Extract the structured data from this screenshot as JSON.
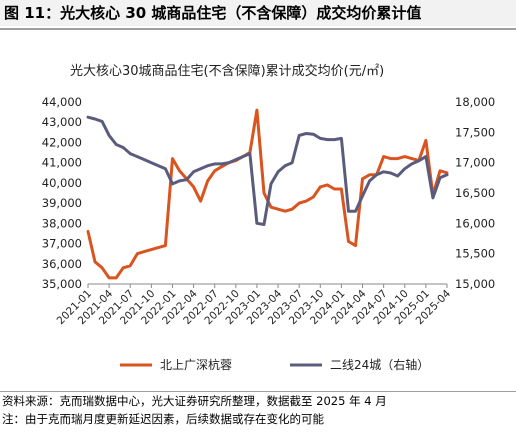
{
  "figure": {
    "label": "图 11：光大核心 30 城商品住宅（不含保障）成交均价累计值",
    "source_note": "资料来源：克而瑞数据中心，光大证券研究所整理，数据截至 2025 年 4 月",
    "footnote": "注：由于克而瑞月度更新延迟因素，后续数据或存在变化的可能"
  },
  "chart_data": {
    "type": "line",
    "title": "光大核心30城商品住宅(不含保障)累计成交均价(元/㎡)",
    "x": [
      "2021-01",
      "2021-02",
      "2021-03",
      "2021-04",
      "2021-05",
      "2021-06",
      "2021-07",
      "2021-08",
      "2021-09",
      "2021-10",
      "2021-11",
      "2021-12",
      "2022-01",
      "2022-02",
      "2022-03",
      "2022-04",
      "2022-05",
      "2022-06",
      "2022-07",
      "2022-08",
      "2022-09",
      "2022-10",
      "2022-11",
      "2022-12",
      "2023-01",
      "2023-02",
      "2023-03",
      "2023-04",
      "2023-05",
      "2023-06",
      "2023-07",
      "2023-08",
      "2023-09",
      "2023-10",
      "2023-11",
      "2023-12",
      "2024-01",
      "2024-02",
      "2024-03",
      "2024-04",
      "2024-05",
      "2024-06",
      "2024-07",
      "2024-08",
      "2024-09",
      "2024-10",
      "2024-11",
      "2024-12",
      "2025-01",
      "2025-02",
      "2025-03",
      "2025-04"
    ],
    "x_tick_labels": [
      "2021-01",
      "2021-04",
      "2021-07",
      "2021-10",
      "2022-01",
      "2022-04",
      "2022-07",
      "2022-10",
      "2023-01",
      "2023-04",
      "2023-07",
      "2023-10",
      "2024-01",
      "2024-04",
      "2024-07",
      "2024-10",
      "2025-01",
      "2025-04"
    ],
    "y_left": {
      "ticks": [
        "35,000",
        "36,000",
        "37,000",
        "38,000",
        "39,000",
        "40,000",
        "41,000",
        "42,000",
        "43,000",
        "44,000"
      ],
      "lim": [
        35000,
        44000
      ]
    },
    "y_right": {
      "ticks": [
        "15,000",
        "15,500",
        "16,000",
        "16,500",
        "17,000",
        "17,500",
        "18,000"
      ],
      "lim": [
        15000,
        18000
      ]
    },
    "series": [
      {
        "name": "北上广深杭蓉",
        "axis": "left",
        "color": "#d9541e",
        "values": [
          37600,
          36100,
          35800,
          35300,
          35300,
          35800,
          35900,
          36500,
          36600,
          36700,
          36800,
          36900,
          41200,
          40600,
          40200,
          39800,
          39100,
          40100,
          40600,
          40800,
          41000,
          41100,
          41300,
          41500,
          43600,
          39500,
          38800,
          38700,
          38600,
          38700,
          39000,
          39100,
          39300,
          39800,
          39900,
          39700,
          39700,
          37100,
          36900,
          40200,
          40400,
          40400,
          41300,
          41200,
          41200,
          41300,
          41200,
          41100,
          42100,
          39400,
          40600,
          40500
        ]
      },
      {
        "name": "二线24城（右轴）",
        "axis": "right",
        "color": "#5b5c7d",
        "values": [
          17750,
          17720,
          17680,
          17450,
          17300,
          17250,
          17150,
          17100,
          17050,
          17000,
          16950,
          16900,
          16650,
          16700,
          16720,
          16850,
          16900,
          16950,
          16980,
          16980,
          17000,
          17050,
          17100,
          17150,
          16000,
          15980,
          16650,
          16850,
          16950,
          17000,
          17450,
          17480,
          17470,
          17400,
          17380,
          17380,
          17400,
          16200,
          16200,
          16450,
          16700,
          16800,
          16850,
          16830,
          16780,
          16900,
          16980,
          17030,
          17100,
          16420,
          16750,
          16800
        ]
      }
    ],
    "legend_position": "bottom",
    "grid": false
  }
}
